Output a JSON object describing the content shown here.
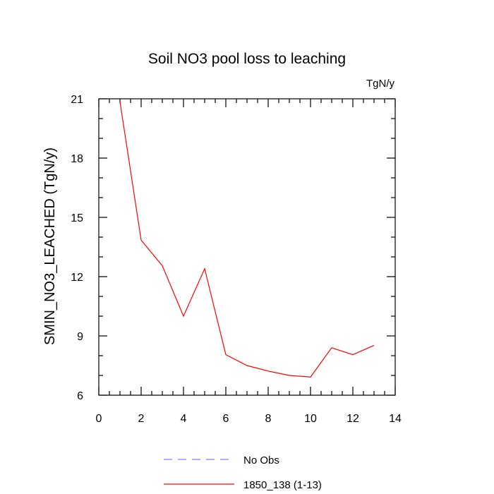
{
  "chart_data": {
    "type": "line",
    "title": "Soil NO3 pool loss to leaching",
    "units_label": "TgN/y",
    "ylabel": "SMIN_NO3_LEACHED  (TgN/y)",
    "xlabel": "",
    "xlim": [
      0,
      14
    ],
    "ylim": [
      6,
      21
    ],
    "x_ticks": [
      0,
      2,
      4,
      6,
      8,
      10,
      12,
      14
    ],
    "y_ticks": [
      6,
      9,
      12,
      15,
      18,
      21
    ],
    "grid": false,
    "legend_position": "bottom-center",
    "series": [
      {
        "name": "1850_138 (1-13)",
        "color": "#ff0000",
        "style": "solid",
        "x": [
          1,
          2,
          3,
          4,
          5,
          6,
          7,
          8,
          9,
          10,
          11,
          12,
          13
        ],
        "y": [
          20.85,
          13.85,
          12.55,
          10.0,
          12.4,
          8.05,
          7.5,
          7.22,
          7.0,
          6.92,
          8.4,
          8.05,
          8.52
        ]
      }
    ],
    "legend": [
      {
        "label": "No Obs",
        "color": "#8080ff",
        "style": "dashed"
      },
      {
        "label": "1850_138 (1-13)",
        "color": "#ff0000",
        "style": "solid"
      }
    ]
  }
}
